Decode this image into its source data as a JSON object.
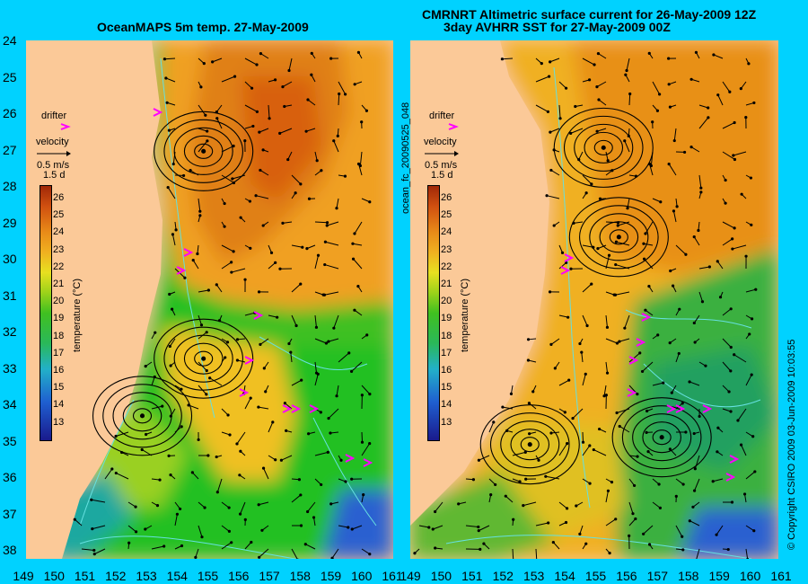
{
  "left_panel": {
    "title": "OceanMAPS 5m temp. 27-May-2009"
  },
  "right_panel": {
    "title_line1": "CMRNRT Altimetric surface current for 26-May-2009 12Z",
    "title_line2": "3day AVHRR SST for 27-May-2009 00Z",
    "file_label": "ocean_fc_20090525_048"
  },
  "legend": {
    "drifter_label": "drifter",
    "velocity_label": "velocity",
    "speed_label": "0.5 m/s",
    "days_label": "1.5 d",
    "colorbar_label": "temperature (°C)",
    "colorbar_ticks": [
      "26",
      "25",
      "24",
      "23",
      "22",
      "21",
      "20",
      "19",
      "18",
      "17",
      "16",
      "15",
      "14",
      "13"
    ],
    "colors": {
      "drifter": "#ff00ff",
      "contour": "#66e0e0",
      "land": "#fbc998",
      "background": "#00d2ff"
    }
  },
  "axes": {
    "latitudes": [
      "24",
      "25",
      "26",
      "27",
      "28",
      "29",
      "30",
      "31",
      "32",
      "33",
      "34",
      "35",
      "36",
      "37",
      "38"
    ],
    "longitudes": [
      "149",
      "150",
      "151",
      "152",
      "153",
      "154",
      "155",
      "156",
      "157",
      "158",
      "159",
      "160",
      "161"
    ]
  },
  "copyright": "© Copyright CSIRO 2009   03-Jun-2009 10:03:55",
  "map_data": {
    "lon_range": [
      149,
      161
    ],
    "lat_range": [
      24,
      38.5
    ],
    "left_eddies": [
      {
        "lon": 152.8,
        "lat": 34.5,
        "rotation": "cyclonic"
      },
      {
        "lon": 154.8,
        "lat": 32.9,
        "rotation": "anticyclonic"
      },
      {
        "lon": 154.8,
        "lat": 27.1,
        "rotation": "anticyclonic"
      }
    ],
    "right_eddies": [
      {
        "lon": 152.9,
        "lat": 35.3,
        "rotation": "cyclonic"
      },
      {
        "lon": 155.3,
        "lat": 27.0,
        "rotation": "anticyclonic"
      },
      {
        "lon": 155.8,
        "lat": 29.5,
        "rotation": "anticyclonic"
      },
      {
        "lon": 157.2,
        "lat": 35.1,
        "rotation": "cyclonic"
      }
    ]
  }
}
